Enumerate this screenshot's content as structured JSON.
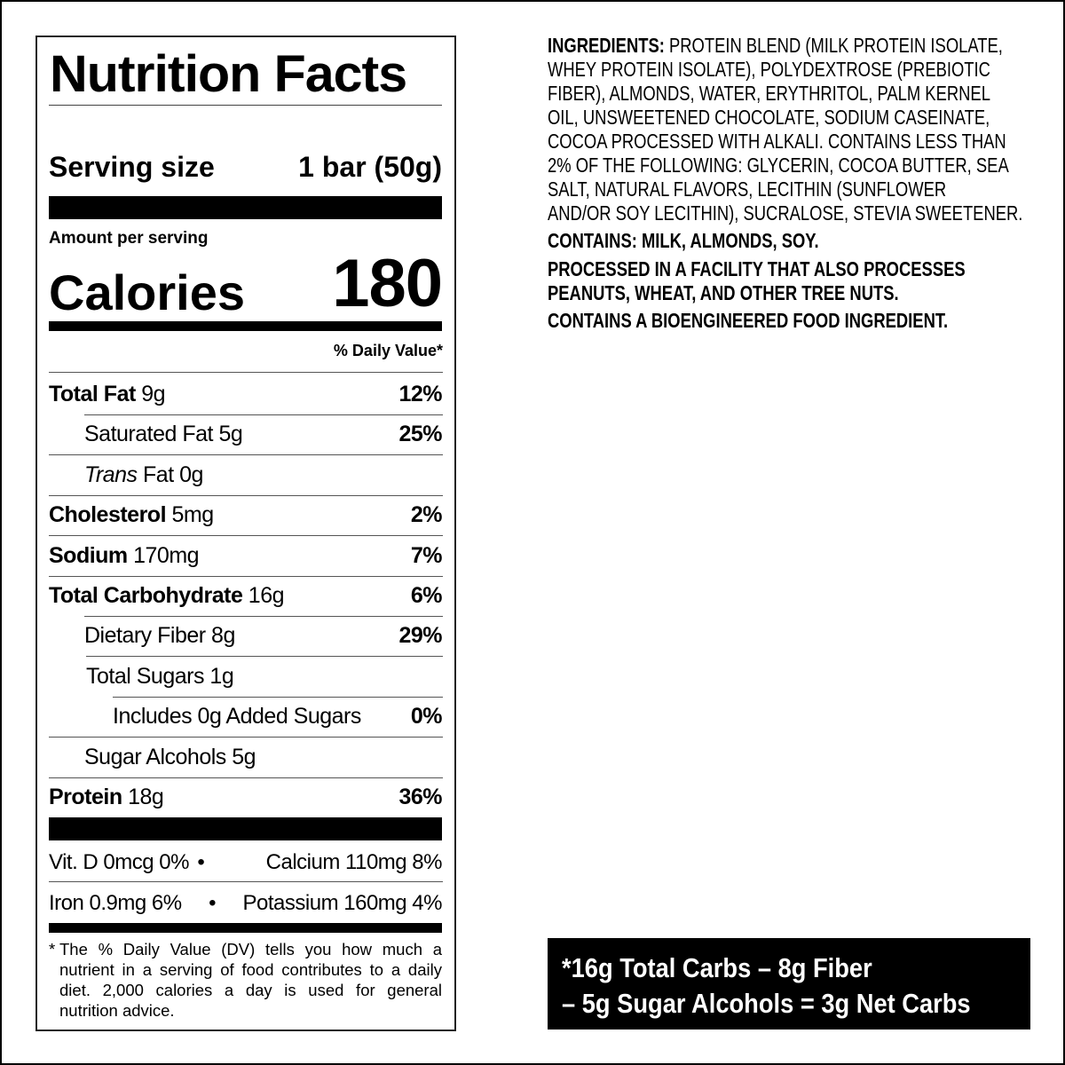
{
  "nutrition": {
    "title": "Nutrition Facts",
    "serving_label": "Serving size",
    "serving_value": "1 bar (50g)",
    "amount_per_serving": "Amount per serving",
    "calories_label": "Calories",
    "calories_value": "180",
    "daily_value_header": "% Daily Value*",
    "rows": [
      {
        "name": "Total Fat",
        "amount": "9g",
        "dv": "12%"
      },
      {
        "name": "Saturated Fat",
        "amount": "5g",
        "dv": "25%"
      },
      {
        "name": "Trans",
        "name_suffix": "Fat",
        "amount": "0g",
        "dv": ""
      },
      {
        "name": "Cholesterol",
        "amount": "5mg",
        "dv": "2%"
      },
      {
        "name": "Sodium",
        "amount": "170mg",
        "dv": "7%"
      },
      {
        "name": "Total Carbohydrate",
        "amount": "16g",
        "dv": "6%"
      },
      {
        "name": "Dietary Fiber",
        "amount": "8g",
        "dv": "29%"
      },
      {
        "name": "Total Sugars",
        "amount": "1g",
        "dv": ""
      },
      {
        "name": "Includes 0g Added Sugars",
        "amount": "",
        "dv": "0%"
      },
      {
        "name": "Sugar Alcohols",
        "amount": "5g",
        "dv": ""
      },
      {
        "name": "Protein",
        "amount": "18g",
        "dv": "36%"
      }
    ],
    "vitamins": [
      {
        "left": "Vit. D 0mcg 0%",
        "right": "Calcium 110mg 8%"
      },
      {
        "left": "Iron 0.9mg 6%",
        "right": "Potassium 160mg 4%"
      }
    ],
    "bullet": "•",
    "footnote_star": "*",
    "footnote": "The % Daily Value (DV) tells you how much a nutrient in a serving of food contributes to a daily diet. 2,000 calories a day is used for general nutrition advice."
  },
  "ingredients": {
    "label": "INGREDIENTS:",
    "lines": [
      "PROTEIN BLEND (MILK PROTEIN ISOLATE,",
      "WHEY PROTEIN ISOLATE), POLYDEXTROSE (PREBIOTIC",
      "FIBER), ALMONDS, WATER, ERYTHRITOL, PALM KERNEL",
      "OIL, UNSWEETENED CHOCOLATE, SODIUM CASEINATE,",
      "COCOA PROCESSED WITH ALKALI. CONTAINS LESS THAN",
      "2% OF THE FOLLOWING: GLYCERIN, COCOA BUTTER, SEA",
      "SALT, NATURAL FLAVORS, LECITHIN (SUNFLOWER",
      "AND/OR SOY LECITHIN), SUCRALOSE, STEVIA SWEETENER."
    ],
    "contains": "CONTAINS: MILK, ALMONDS, SOY.",
    "facility": [
      "PROCESSED IN A FACILITY THAT ALSO PROCESSES",
      "PEANUTS, WHEAT, AND OTHER TREE NUTS."
    ],
    "bioengineered": "CONTAINS A BIOENGINEERED FOOD INGREDIENT."
  },
  "net_carbs": {
    "line1": "*16g Total Carbs – 8g Fiber",
    "line2": "– 5g Sugar Alcohols = 3g Net Carbs"
  }
}
